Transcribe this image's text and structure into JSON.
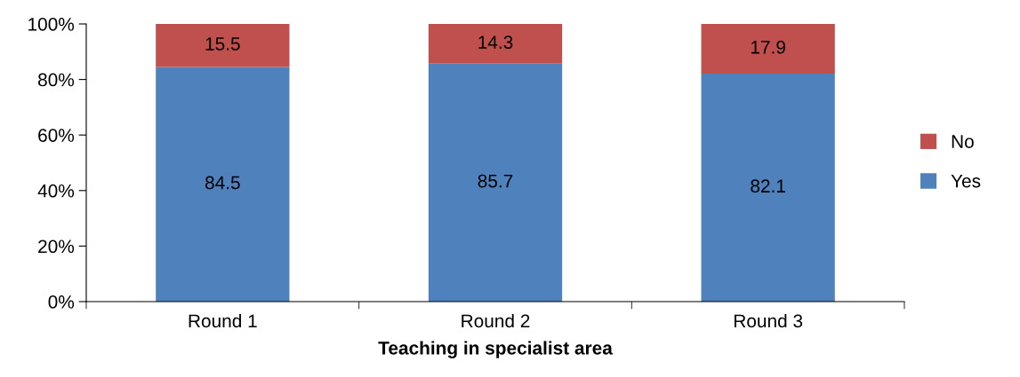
{
  "chart_data": {
    "type": "bar",
    "stacked": true,
    "xlabel": "Teaching in specialist area",
    "categories": [
      "Round 1",
      "Round 2",
      "Round 3"
    ],
    "series": [
      {
        "name": "Yes",
        "color": "#4f81bd",
        "values": [
          84.5,
          85.7,
          82.1
        ]
      },
      {
        "name": "No",
        "color": "#c0504d",
        "values": [
          15.5,
          14.3,
          17.9
        ]
      }
    ],
    "ylim": [
      0,
      100
    ],
    "yticks": [
      {
        "value": 0,
        "label": "0%"
      },
      {
        "value": 20,
        "label": "20%"
      },
      {
        "value": 40,
        "label": "40%"
      },
      {
        "value": 60,
        "label": "60%"
      },
      {
        "value": 80,
        "label": "80%"
      },
      {
        "value": 100,
        "label": "100%"
      }
    ],
    "data_labels": true,
    "legend": "right",
    "grid": false
  }
}
